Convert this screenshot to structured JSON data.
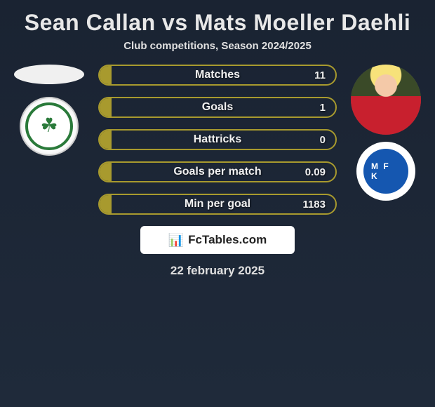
{
  "header": {
    "title": "Sean Callan vs Mats Moeller Daehli",
    "subtitle": "Club competitions, Season 2024/2025"
  },
  "players": {
    "left": {
      "name": "Sean Callan",
      "club_badge": "shamrock-rovers"
    },
    "right": {
      "name": "Mats Moeller Daehli",
      "shirt_color": "#c8202e",
      "club_badge": "molde-fk",
      "club_badge_bg": "#1557b0"
    }
  },
  "stats": {
    "border_color": "#a89a2e",
    "fill_color": "#a89a2e",
    "rows": [
      {
        "label": "Matches",
        "value": "11",
        "fill_pct": 5
      },
      {
        "label": "Goals",
        "value": "1",
        "fill_pct": 5
      },
      {
        "label": "Hattricks",
        "value": "0",
        "fill_pct": 5
      },
      {
        "label": "Goals per match",
        "value": "0.09",
        "fill_pct": 5
      },
      {
        "label": "Min per goal",
        "value": "1183",
        "fill_pct": 5
      }
    ]
  },
  "footer": {
    "brand_icon": "📊",
    "brand_text": "FcTables.com",
    "date": "22 february 2025"
  },
  "colors": {
    "bg_top": "#1a2332",
    "bg_bottom": "#1f2a3a",
    "text": "#e8e8e8"
  }
}
